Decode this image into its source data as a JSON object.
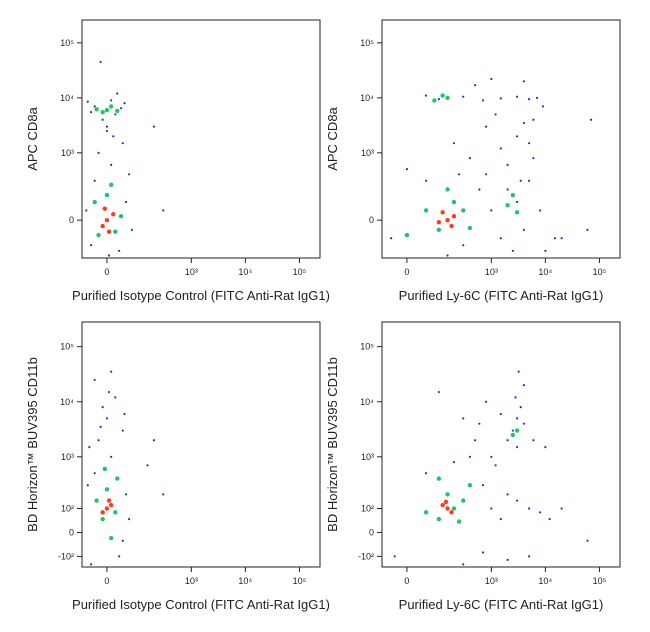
{
  "chart_data": [
    {
      "type": "scatter",
      "xlabel": "Purified Isotype Control (FITC Anti-Rat IgG1)",
      "ylabel": "APC  CD8a",
      "xscale": "biexponential",
      "yscale": "biexponential",
      "xlim": [
        -70,
        240000
      ],
      "ylim": [
        -280,
        260000
      ],
      "xticks": [
        0,
        {
          "value": 1000,
          "label": "10³"
        },
        {
          "value": 10000,
          "label": "10⁴"
        },
        {
          "value": 100000,
          "label": "10⁵"
        }
      ],
      "yticks": [
        0,
        {
          "value": 1000,
          "label": "10³"
        },
        {
          "value": 10000,
          "label": "10⁴"
        },
        {
          "value": 100000,
          "label": "10⁵"
        }
      ],
      "series": [
        {
          "color": "#1a33d6",
          "x": [
            -40,
            30,
            50,
            -30,
            10,
            -20,
            40,
            0,
            -10,
            20,
            -30,
            45,
            10,
            -40,
            35,
            60,
            -55,
            5,
            70,
            0,
            200,
            300,
            25,
            -15,
            15,
            -50
          ],
          "y": [
            -150,
            -200,
            100,
            300,
            600,
            1000,
            1500,
            2500,
            4000,
            5000,
            7000,
            8000,
            9000,
            5500,
            6500,
            400,
            50,
            -250,
            -50,
            3000,
            3000,
            50,
            12000,
            45000,
            2000,
            8500
          ]
        },
        {
          "color": "#22c46a",
          "x": [
            -20,
            20,
            0,
            -30,
            35,
            10,
            -10,
            10,
            0,
            -25,
            25
          ],
          "y": [
            -80,
            -60,
            150,
            100,
            20,
            250,
            5500,
            7000,
            6000,
            6200,
            5800
          ]
        },
        {
          "color": "#ff3a1a",
          "x": [
            0,
            -10,
            15,
            5,
            -5
          ],
          "y": [
            0,
            -30,
            30,
            -60,
            60
          ]
        }
      ]
    },
    {
      "type": "scatter",
      "xlabel": "Purified Ly-6C (FITC Anti-Rat IgG1)",
      "ylabel": "APC  CD8a",
      "xscale": "biexponential",
      "yscale": "biexponential",
      "xlim": [
        -70,
        240000
      ],
      "ylim": [
        -280,
        260000
      ],
      "xticks": [
        0,
        {
          "value": 1000,
          "label": "10³"
        },
        {
          "value": 10000,
          "label": "10⁴"
        },
        {
          "value": 100000,
          "label": "10⁵"
        }
      ],
      "yticks": [
        0,
        {
          "value": 1000,
          "label": "10³"
        },
        {
          "value": 10000,
          "label": "10⁴"
        },
        {
          "value": 100000,
          "label": "10⁵"
        }
      ],
      "series": [
        {
          "color": "#1a33d6",
          "x": [
            -40,
            50,
            300,
            600,
            1000,
            1500,
            2000,
            3000,
            4000,
            5000,
            8000,
            15000,
            2000,
            1500,
            3000,
            5000,
            800,
            400,
            200,
            100,
            50,
            300,
            700,
            1500,
            3000,
            5000,
            7000,
            4000,
            60000,
            10000,
            20000,
            70000,
            1000,
            4000,
            800,
            2500,
            6000,
            150,
            0,
            250,
            3500,
            9000,
            1200,
            6000,
            500
          ],
          "y": [
            -100,
            300,
            -150,
            200,
            50,
            -100,
            200,
            100,
            -50,
            300,
            50,
            -100,
            600,
            1200,
            2000,
            1500,
            3000,
            800,
            1500,
            9500,
            11000,
            10500,
            9000,
            9800,
            10500,
            9500,
            10000,
            3500,
            -50,
            -200,
            -100,
            4000,
            22000,
            20000,
            400,
            -200,
            800,
            -250,
            500,
            400,
            300,
            7000,
            5000,
            4000,
            17000
          ]
        },
        {
          "color": "#22c46a",
          "x": [
            100,
            200,
            50,
            300,
            150,
            0,
            400,
            2000,
            2500,
            3000,
            150,
            80,
            120
          ],
          "y": [
            -50,
            100,
            50,
            50,
            200,
            -80,
            -40,
            80,
            150,
            40,
            10000,
            9000,
            11000
          ]
        },
        {
          "color": "#ff3a1a",
          "x": [
            150,
            120,
            180,
            200,
            100
          ],
          "y": [
            0,
            40,
            -30,
            20,
            -10
          ]
        }
      ]
    },
    {
      "type": "scatter",
      "xlabel": "Purified Isotype Control (FITC Anti-Rat IgG1)",
      "ylabel": "BD Horizon™ BUV395  CD11b",
      "xscale": "biexponential",
      "yscale": "biexponential",
      "xlim": [
        -70,
        240000
      ],
      "ylim": [
        -170,
        280000
      ],
      "xticks": [
        0,
        {
          "value": 1000,
          "label": "10³"
        },
        {
          "value": 10000,
          "label": "10⁴"
        },
        {
          "value": 100000,
          "label": "10⁵"
        }
      ],
      "yticks": [
        {
          "value": -100,
          "label": "-10²"
        },
        0,
        {
          "value": 100,
          "label": "10²"
        },
        {
          "value": 1000,
          "label": "10³"
        },
        {
          "value": 10000,
          "label": "10⁴"
        },
        {
          "value": 100000,
          "label": "10⁵"
        }
      ],
      "series": [
        {
          "color": "#1a33d6",
          "x": [
            -40,
            30,
            50,
            -30,
            10,
            -20,
            40,
            0,
            -10,
            20,
            -30,
            45,
            10,
            60,
            -50,
            150,
            300,
            200,
            -45,
            5,
            40,
            -15
          ],
          "y": [
            -150,
            -100,
            200,
            500,
            1000,
            2000,
            3000,
            5000,
            8000,
            12000,
            25000,
            6000,
            35000,
            50,
            300,
            700,
            200,
            2000,
            1500,
            15000,
            -30,
            3500
          ]
        },
        {
          "color": "#22c46a",
          "x": [
            -10,
            20,
            0,
            -25,
            25,
            10,
            -5
          ],
          "y": [
            50,
            80,
            250,
            150,
            400,
            -20,
            600
          ]
        },
        {
          "color": "#ff3a1a",
          "x": [
            0,
            10,
            -10,
            5
          ],
          "y": [
            100,
            120,
            80,
            150
          ]
        }
      ]
    },
    {
      "type": "scatter",
      "xlabel": "Purified Ly-6C (FITC Anti-Rat IgG1)",
      "ylabel": "BD Horizon™ BUV395  CD11b",
      "xscale": "biexponential",
      "yscale": "biexponential",
      "xlim": [
        -70,
        240000
      ],
      "ylim": [
        -170,
        280000
      ],
      "xticks": [
        0,
        {
          "value": 1000,
          "label": "10³"
        },
        {
          "value": 10000,
          "label": "10⁴"
        },
        {
          "value": 100000,
          "label": "10⁵"
        }
      ],
      "yticks": [
        {
          "value": -100,
          "label": "-10²"
        },
        0,
        {
          "value": 100,
          "label": "10²"
        },
        {
          "value": 1000,
          "label": "10³"
        },
        {
          "value": 10000,
          "label": "10⁴"
        },
        {
          "value": 100000,
          "label": "10⁵"
        }
      ],
      "series": [
        {
          "color": "#1a33d6",
          "x": [
            -30,
            50,
            300,
            700,
            1000,
            1500,
            2000,
            3000,
            5000,
            8000,
            12000,
            1000,
            2000,
            2500,
            3000,
            3500,
            4000,
            2800,
            3200,
            500,
            300,
            800,
            1500,
            6000,
            10000,
            400,
            200,
            60000,
            5000,
            2000,
            100,
            1200,
            700,
            3000,
            4000,
            20000,
            600
          ],
          "y": [
            -100,
            500,
            -150,
            300,
            100,
            50,
            200,
            150,
            100,
            80,
            50,
            1000,
            2000,
            3000,
            5000,
            8000,
            4000,
            12000,
            35000,
            2000,
            5000,
            10000,
            6000,
            2000,
            1500,
            1000,
            800,
            -30,
            -100,
            -120,
            15000,
            700,
            -80,
            1500,
            20000,
            100,
            4000
          ]
        },
        {
          "color": "#22c46a",
          "x": [
            100,
            200,
            150,
            50,
            300,
            250,
            400,
            100,
            3000,
            2500
          ],
          "y": [
            50,
            100,
            200,
            80,
            150,
            40,
            300,
            400,
            3000,
            2500
          ]
        },
        {
          "color": "#ff3a1a",
          "x": [
            150,
            120,
            180,
            140
          ],
          "y": [
            100,
            120,
            80,
            140
          ]
        }
      ]
    }
  ]
}
